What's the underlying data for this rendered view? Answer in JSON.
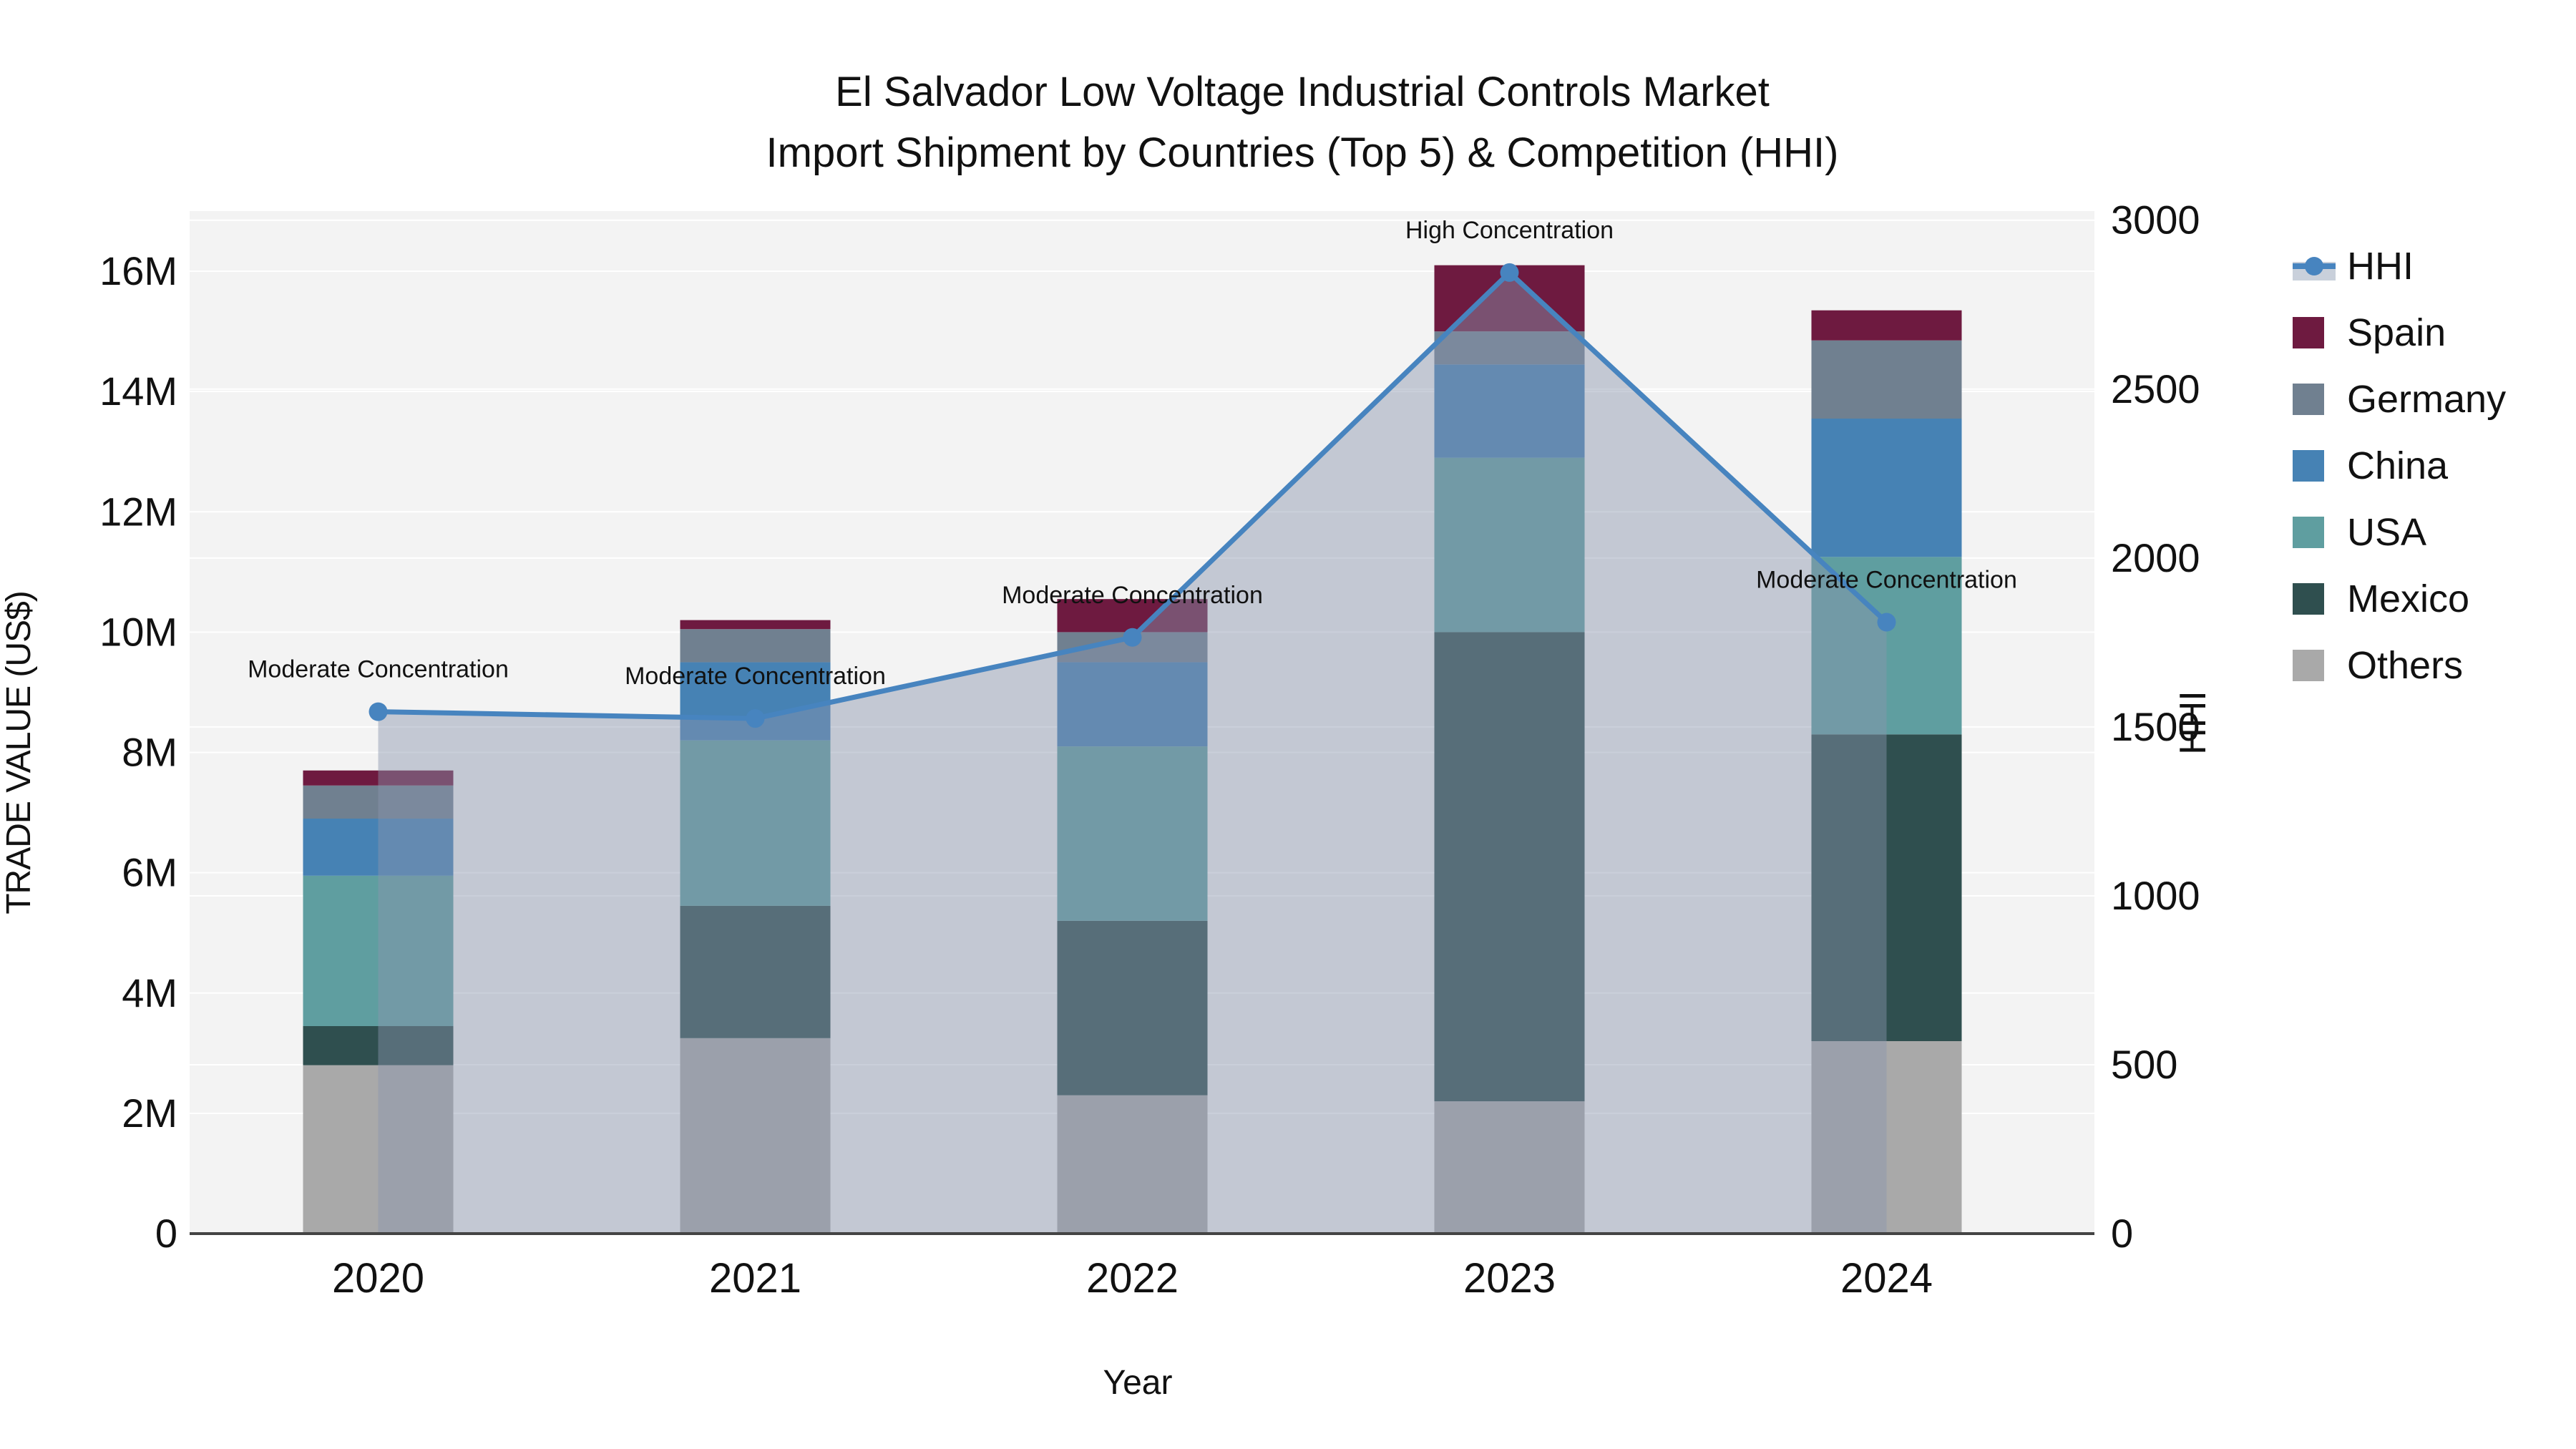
{
  "title": {
    "line1": "El Salvador  Low Voltage Industrial Controls Market",
    "line2": "Import Shipment by Countries (Top 5) & Competition (HHI)"
  },
  "axes": {
    "y_left": {
      "title": "TRADE VALUE (US$)",
      "tick_labels": [
        "0",
        "2M",
        "4M",
        "6M",
        "8M",
        "10M",
        "12M",
        "14M",
        "16M"
      ],
      "tick_values_millions": [
        0,
        2,
        4,
        6,
        8,
        10,
        12,
        14,
        16
      ]
    },
    "y_right": {
      "title": "HHI",
      "tick_labels": [
        "0",
        "500",
        "1000",
        "1500",
        "2000",
        "2500",
        "3000"
      ],
      "tick_values": [
        0,
        500,
        1000,
        1500,
        2000,
        2500,
        3000
      ]
    },
    "x": {
      "title": "Year"
    }
  },
  "legend": {
    "items": [
      {
        "label": "HHI",
        "type": "line",
        "color": "#4784bf",
        "band_color": "#c9d0db"
      },
      {
        "label": "Spain",
        "type": "swatch",
        "color": "#6e1a40"
      },
      {
        "label": "Germany",
        "type": "swatch",
        "color": "#708090"
      },
      {
        "label": "China",
        "type": "swatch",
        "color": "#4682b4"
      },
      {
        "label": "USA",
        "type": "swatch",
        "color": "#5f9ea0"
      },
      {
        "label": "Mexico",
        "type": "swatch",
        "color": "#2f4f4f"
      },
      {
        "label": "Others",
        "type": "swatch",
        "color": "#a9a9a9"
      }
    ]
  },
  "chart_data": {
    "type": "bar",
    "subtype": "stacked-bar-with-line",
    "title": "El Salvador  Low Voltage Industrial Controls Market Import Shipment by Countries (Top 5) & Competition (HHI)",
    "xlabel": "Year",
    "ylabel_left": "TRADE VALUE (US$)",
    "ylabel_right": "HHI",
    "categories": [
      "2020",
      "2021",
      "2022",
      "2023",
      "2024"
    ],
    "bar_value_unit": "millions US$",
    "series": [
      {
        "name": "Others",
        "color": "#a9a9a9",
        "values": [
          2.8,
          3.25,
          2.3,
          2.2,
          3.2
        ]
      },
      {
        "name": "Mexico",
        "color": "#2f4f4f",
        "values": [
          0.65,
          2.2,
          2.9,
          7.8,
          5.1
        ]
      },
      {
        "name": "USA",
        "color": "#5f9ea0",
        "values": [
          2.5,
          2.75,
          2.9,
          2.9,
          2.95
        ]
      },
      {
        "name": "China",
        "color": "#4682b4",
        "values": [
          0.95,
          1.3,
          1.4,
          1.55,
          2.3
        ]
      },
      {
        "name": "Germany",
        "color": "#708090",
        "values": [
          0.55,
          0.55,
          0.5,
          0.55,
          1.3
        ]
      },
      {
        "name": "Spain",
        "color": "#6e1a40",
        "values": [
          0.25,
          0.15,
          0.55,
          1.1,
          0.5
        ]
      }
    ],
    "bar_totals_millions": [
      7.7,
      10.2,
      10.55,
      16.1,
      15.35
    ],
    "line": {
      "name": "HHI",
      "color": "#4784bf",
      "area_fill": "rgba(138,148,172,0.45)",
      "values": [
        1545,
        1525,
        1765,
        2845,
        1810
      ],
      "annotations": [
        "Moderate Concentration",
        "Moderate Concentration",
        "Moderate Concentration",
        "High Concentration",
        "Moderate Concentration"
      ]
    },
    "ylim_left_millions": [
      0,
      17
    ],
    "ylim_right": [
      0,
      3027
    ],
    "grid": true,
    "legend_position": "right",
    "plot_bg": "#f3f3f3",
    "grid_color": "#ffffff",
    "axis_line_color": "#444444"
  }
}
